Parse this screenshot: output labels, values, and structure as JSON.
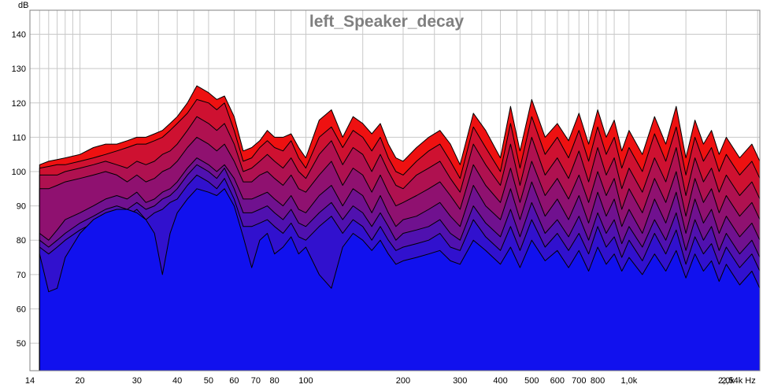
{
  "chart_data": {
    "type": "area",
    "title": "left_Speaker_decay",
    "ylabel": "dB",
    "xlabel": "Hz",
    "x_scale": "log",
    "xlim": [
      14,
      2540
    ],
    "ylim": [
      42,
      147
    ],
    "grid": true,
    "y_ticks": [
      {
        "value": 50,
        "label": "50"
      },
      {
        "value": 60,
        "label": "60"
      },
      {
        "value": 70,
        "label": "70"
      },
      {
        "value": 80,
        "label": "80"
      },
      {
        "value": 90,
        "label": "90"
      },
      {
        "value": 100,
        "label": "100"
      },
      {
        "value": 110,
        "label": "110"
      },
      {
        "value": 120,
        "label": "120"
      },
      {
        "value": 130,
        "label": "130"
      },
      {
        "value": 140,
        "label": "140"
      }
    ],
    "x_ticks": [
      {
        "value": 14,
        "label": "14"
      },
      {
        "value": 20,
        "label": "20"
      },
      {
        "value": 30,
        "label": "30"
      },
      {
        "value": 40,
        "label": "40"
      },
      {
        "value": 50,
        "label": "50"
      },
      {
        "value": 60,
        "label": "60"
      },
      {
        "value": 70,
        "label": "70"
      },
      {
        "value": 80,
        "label": "80"
      },
      {
        "value": 100,
        "label": "100"
      },
      {
        "value": 200,
        "label": "200"
      },
      {
        "value": 300,
        "label": "300"
      },
      {
        "value": 400,
        "label": "400"
      },
      {
        "value": 500,
        "label": "500"
      },
      {
        "value": 600,
        "label": "600"
      },
      {
        "value": 700,
        "label": "700"
      },
      {
        "value": 800,
        "label": "800"
      },
      {
        "value": 1000,
        "label": "1,0k"
      },
      {
        "value": 2000,
        "label": "2,0k"
      },
      {
        "value": 2540,
        "label": "2,54k Hz"
      }
    ],
    "x_minor_grid": [
      15,
      16,
      17,
      18,
      19,
      25,
      35,
      45,
      90,
      150,
      250,
      350,
      450,
      550,
      650,
      750,
      850,
      900,
      1500,
      2500
    ],
    "colors": {
      "first_slice": "#ee1111",
      "last_slice": "#1111ee",
      "outline": "#000000",
      "grid": "#c8c8c8",
      "title": "#7f7f7f"
    },
    "x": [
      15,
      16,
      17,
      18,
      20,
      22,
      24,
      26,
      28,
      30,
      32,
      34,
      36,
      38,
      40,
      43,
      46,
      50,
      53,
      56,
      60,
      64,
      68,
      72,
      76,
      80,
      85,
      90,
      95,
      100,
      110,
      120,
      130,
      140,
      150,
      160,
      170,
      180,
      190,
      200,
      220,
      240,
      260,
      280,
      300,
      330,
      360,
      400,
      430,
      460,
      500,
      550,
      600,
      650,
      700,
      750,
      800,
      850,
      900,
      950,
      1000,
      1100,
      1200,
      1300,
      1400,
      1500,
      1600,
      1700,
      1800,
      1900,
      2000,
      2200,
      2400,
      2540
    ],
    "series": [
      {
        "values": [
          102,
          103,
          103.5,
          104,
          105,
          107,
          108,
          108,
          109,
          110,
          110,
          111,
          112,
          114,
          116,
          120,
          125,
          123,
          121,
          122,
          116,
          106,
          107,
          109,
          112,
          110,
          110,
          111,
          107,
          104,
          115,
          118,
          110,
          116,
          114,
          111,
          114,
          108,
          104,
          103,
          107,
          110,
          112,
          108,
          102,
          117,
          112,
          104,
          119,
          106,
          121,
          110,
          114,
          109,
          117,
          108,
          118,
          110,
          115,
          106,
          112,
          105,
          116,
          108,
          119,
          104,
          115,
          108,
          112,
          105,
          110,
          104,
          108,
          103
        ]
      },
      {
        "values": [
          101,
          101.5,
          102,
          102,
          103,
          104,
          105,
          106,
          107,
          108,
          108,
          109,
          110,
          112,
          114,
          117,
          121,
          120,
          118,
          120,
          112,
          103,
          104,
          107,
          109,
          107,
          106,
          109,
          104,
          101,
          110,
          113,
          107,
          112,
          110,
          106,
          110,
          104,
          100,
          99,
          103,
          106,
          108,
          103,
          98,
          113,
          107,
          100,
          114,
          101,
          116,
          105,
          110,
          104,
          112,
          103,
          113,
          105,
          110,
          101,
          107,
          100,
          111,
          103,
          113,
          99,
          110,
          103,
          107,
          100,
          105,
          99,
          103,
          98
        ]
      },
      {
        "values": [
          99,
          99,
          99,
          100,
          101,
          102,
          103,
          102,
          101,
          103,
          102,
          103,
          105,
          106,
          108,
          112,
          116,
          114,
          112,
          114,
          108,
          100,
          101,
          103,
          105,
          103,
          101,
          104,
          100,
          98,
          105,
          109,
          102,
          107,
          105,
          100,
          105,
          100,
          96,
          95,
          99,
          101,
          103,
          98,
          94,
          108,
          102,
          96,
          108,
          96,
          110,
          99,
          104,
          98,
          106,
          97,
          107,
          99,
          104,
          95,
          101,
          94,
          104,
          97,
          107,
          93,
          104,
          97,
          101,
          94,
          99,
          93,
          97,
          92
        ]
      },
      {
        "values": [
          95,
          95,
          96,
          97,
          98,
          99,
          100,
          99,
          97,
          99,
          97,
          98,
          100,
          101,
          103,
          107,
          110,
          108,
          106,
          108,
          103,
          97,
          97,
          99,
          100,
          98,
          96,
          99,
          95,
          94,
          99,
          103,
          96,
          101,
          99,
          94,
          99,
          94,
          90,
          91,
          93,
          95,
          97,
          93,
          89,
          102,
          96,
          91,
          101,
          91,
          103,
          93,
          98,
          92,
          99,
          91,
          100,
          93,
          98,
          89,
          95,
          88,
          98,
          91,
          100,
          87,
          98,
          91,
          95,
          88,
          93,
          87,
          91,
          86
        ]
      },
      {
        "values": [
          82,
          80,
          83,
          86,
          88,
          90,
          92,
          93,
          92,
          94,
          91,
          92,
          94,
          95,
          97,
          101,
          104,
          102,
          100,
          102,
          98,
          92,
          92,
          93,
          94,
          92,
          90,
          93,
          89,
          88,
          93,
          96,
          90,
          95,
          93,
          88,
          93,
          88,
          84,
          86,
          87,
          89,
          91,
          87,
          84,
          96,
          90,
          86,
          95,
          86,
          97,
          87,
          92,
          86,
          93,
          85,
          94,
          87,
          92,
          84,
          89,
          82,
          92,
          85,
          94,
          82,
          92,
          85,
          89,
          82,
          87,
          81,
          85,
          80
        ]
      },
      {
        "values": [
          80,
          78,
          80,
          82,
          85,
          87,
          89,
          90,
          89,
          91,
          89,
          90,
          92,
          93,
          95,
          99,
          102,
          100,
          98,
          101,
          95,
          88,
          88,
          89,
          90,
          88,
          86,
          89,
          85,
          84,
          88,
          91,
          86,
          90,
          88,
          84,
          88,
          84,
          80,
          82,
          83,
          84,
          86,
          82,
          80,
          90,
          85,
          81,
          89,
          81,
          91,
          82,
          86,
          81,
          87,
          80,
          88,
          82,
          86,
          79,
          84,
          78,
          86,
          80,
          88,
          77,
          86,
          80,
          84,
          77,
          82,
          76,
          80,
          75
        ]
      },
      {
        "values": [
          78,
          76,
          78,
          80,
          83,
          85,
          86,
          88,
          87,
          89,
          86,
          88,
          89,
          91,
          92,
          96,
          99,
          97,
          95,
          98,
          92,
          84,
          84,
          85,
          86,
          84,
          82,
          85,
          81,
          80,
          84,
          87,
          82,
          86,
          84,
          80,
          84,
          80,
          77,
          78,
          79,
          80,
          82,
          78,
          77,
          86,
          81,
          77,
          84,
          77,
          86,
          78,
          82,
          77,
          82,
          76,
          84,
          78,
          81,
          75,
          80,
          74,
          82,
          76,
          83,
          73,
          81,
          76,
          79,
          73,
          78,
          72,
          76,
          71
        ]
      },
      {
        "values": [
          76,
          65,
          66,
          75,
          82,
          86,
          88,
          89,
          89,
          88,
          86,
          82,
          70,
          82,
          88,
          92,
          95,
          94,
          93,
          95,
          90,
          81,
          72,
          80,
          82,
          76,
          78,
          81,
          76,
          78,
          70,
          66,
          78,
          82,
          80,
          77,
          80,
          76,
          73,
          74,
          75,
          76,
          77,
          74,
          73,
          80,
          77,
          73,
          78,
          72,
          80,
          74,
          77,
          72,
          77,
          71,
          78,
          73,
          76,
          71,
          75,
          70,
          76,
          71,
          77,
          69,
          76,
          71,
          74,
          68,
          73,
          67,
          71,
          66
        ]
      }
    ]
  }
}
